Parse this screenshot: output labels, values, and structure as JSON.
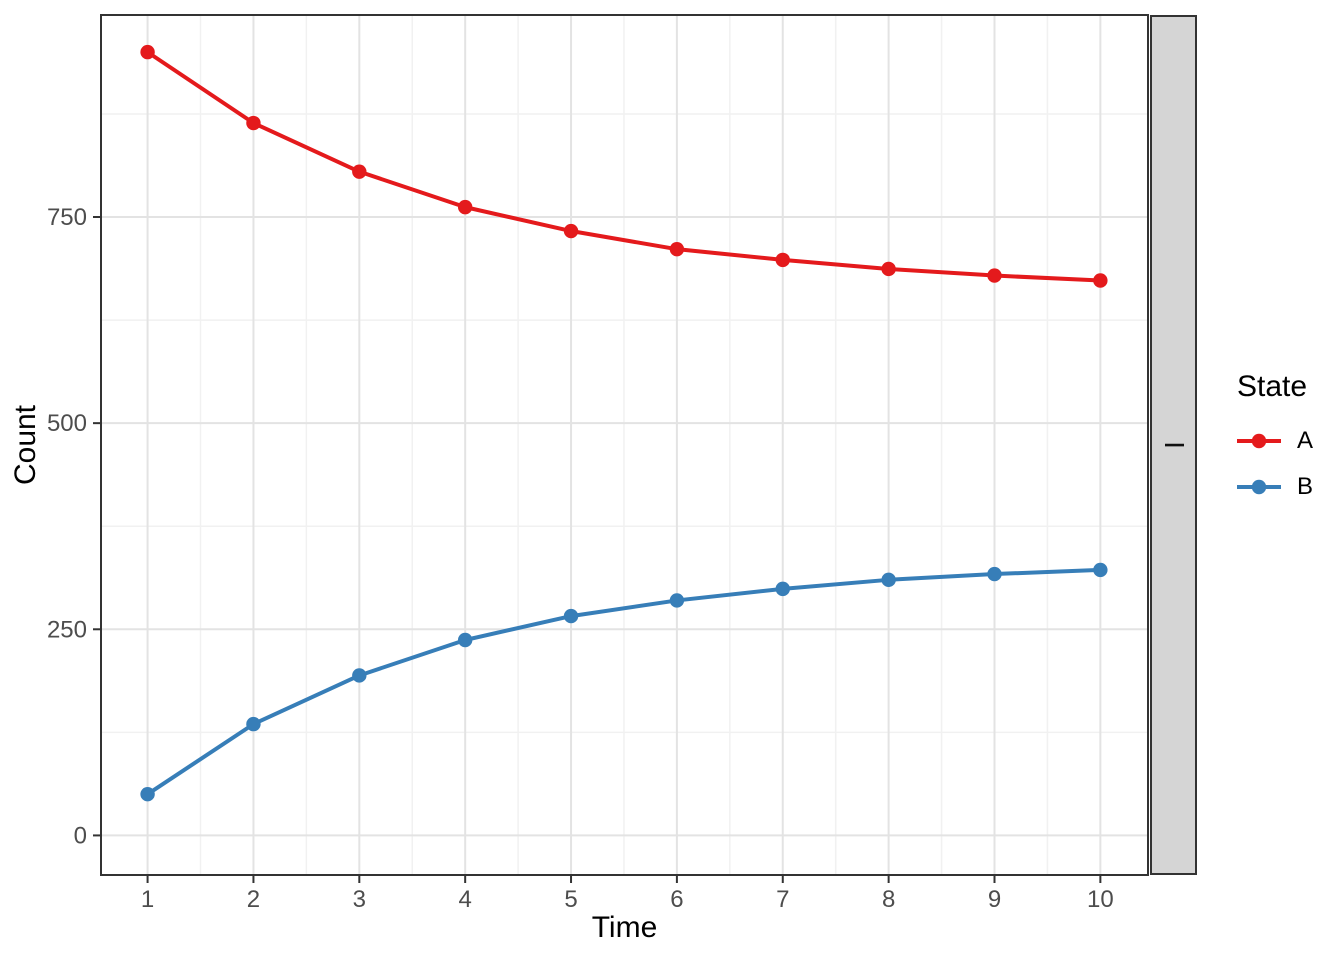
{
  "figure": {
    "background": "#FFFFFF",
    "panel_border_color": "#333333",
    "grid_major_color": "#E3E3E3",
    "grid_minor_color": "#F1F1F1",
    "tick_color": "#333333",
    "tick_label_color": "#4D4D4D",
    "facet": {
      "label": "I",
      "fill": "#D5D5D5",
      "border": "#333333"
    },
    "legend": {
      "title": "State"
    }
  },
  "chart_data": {
    "type": "line",
    "title": "",
    "xlabel": "Time",
    "ylabel": "Count",
    "x": [
      1,
      2,
      3,
      4,
      5,
      6,
      7,
      8,
      9,
      10
    ],
    "series": [
      {
        "name": "A",
        "color": "#E41A1C",
        "values": [
          950,
          864,
          805,
          762,
          733,
          711,
          698,
          687,
          679,
          673
        ]
      },
      {
        "name": "B",
        "color": "#377EB8",
        "values": [
          50,
          135,
          194,
          237,
          266,
          285,
          299,
          310,
          317,
          322
        ]
      }
    ],
    "x_ticks": [
      1,
      2,
      3,
      4,
      5,
      6,
      7,
      8,
      9,
      10
    ],
    "y_ticks": [
      0,
      250,
      500,
      750
    ],
    "x_minor": [
      1.5,
      2.5,
      3.5,
      4.5,
      5.5,
      6.5,
      7.5,
      8.5,
      9.5
    ],
    "y_minor": [
      125,
      375,
      625,
      875
    ],
    "xlim": [
      0.56,
      10.45
    ],
    "ylim": [
      -48,
      995
    ],
    "grid": true,
    "legend_position": "right",
    "facet_label": "I",
    "marker_radius": 7.2,
    "line_width": 4
  }
}
